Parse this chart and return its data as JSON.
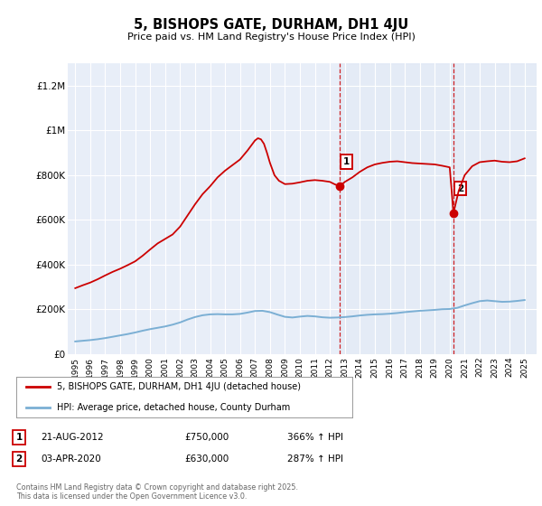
{
  "title": "5, BISHOPS GATE, DURHAM, DH1 4JU",
  "subtitle": "Price paid vs. HM Land Registry's House Price Index (HPI)",
  "ylim": [
    0,
    1300000
  ],
  "yticks": [
    0,
    200000,
    400000,
    600000,
    800000,
    1000000,
    1200000
  ],
  "ytick_labels": [
    "£0",
    "£200K",
    "£400K",
    "£600K",
    "£800K",
    "£1M",
    "£1.2M"
  ],
  "hpi_color": "#7bafd4",
  "price_color": "#cc0000",
  "fig_bg_color": "#ffffff",
  "plot_bg_color": "#e8eef8",
  "grid_color": "#ffffff",
  "marker1_x": 2012.65,
  "marker1_y": 750000,
  "marker1_label": "1",
  "marker1_date": "21-AUG-2012",
  "marker1_price": "£750,000",
  "marker1_hpi": "366% ↑ HPI",
  "marker2_x": 2020.25,
  "marker2_y": 630000,
  "marker2_label": "2",
  "marker2_date": "03-APR-2020",
  "marker2_price": "£630,000",
  "marker2_hpi": "287% ↑ HPI",
  "legend_line1": "5, BISHOPS GATE, DURHAM, DH1 4JU (detached house)",
  "legend_line2": "HPI: Average price, detached house, County Durham",
  "footer": "Contains HM Land Registry data © Crown copyright and database right 2025.\nThis data is licensed under the Open Government Licence v3.0.",
  "dashed_vline_color": "#cc0000",
  "xlim_left": 1994.5,
  "xlim_right": 2025.8,
  "hpi_data_x": [
    1995.0,
    1995.5,
    1996.0,
    1996.5,
    1997.0,
    1997.5,
    1998.0,
    1998.5,
    1999.0,
    1999.5,
    2000.0,
    2000.5,
    2001.0,
    2001.5,
    2002.0,
    2002.5,
    2003.0,
    2003.5,
    2004.0,
    2004.5,
    2005.0,
    2005.5,
    2006.0,
    2006.5,
    2007.0,
    2007.5,
    2008.0,
    2008.5,
    2009.0,
    2009.5,
    2010.0,
    2010.5,
    2011.0,
    2011.5,
    2012.0,
    2012.5,
    2013.0,
    2013.5,
    2014.0,
    2014.5,
    2015.0,
    2015.5,
    2016.0,
    2016.5,
    2017.0,
    2017.5,
    2018.0,
    2018.5,
    2019.0,
    2019.5,
    2020.0,
    2020.5,
    2021.0,
    2021.5,
    2022.0,
    2022.5,
    2023.0,
    2023.5,
    2024.0,
    2024.5,
    2025.0
  ],
  "hpi_data_y": [
    57000,
    60000,
    63000,
    67000,
    72000,
    78000,
    84000,
    90000,
    97000,
    105000,
    112000,
    118000,
    124000,
    132000,
    142000,
    155000,
    166000,
    174000,
    178000,
    179000,
    178000,
    178000,
    180000,
    186000,
    193000,
    194000,
    188000,
    177000,
    167000,
    164000,
    168000,
    171000,
    169000,
    165000,
    163000,
    164000,
    166000,
    169000,
    173000,
    176000,
    178000,
    179000,
    181000,
    184000,
    188000,
    191000,
    194000,
    196000,
    198000,
    201000,
    202000,
    207000,
    218000,
    228000,
    237000,
    240000,
    237000,
    234000,
    235000,
    238000,
    242000
  ],
  "price_data_x": [
    1995.0,
    1995.5,
    1996.0,
    1996.5,
    1997.0,
    1997.5,
    1998.0,
    1998.5,
    1999.0,
    1999.5,
    2000.0,
    2000.5,
    2001.0,
    2001.5,
    2002.0,
    2002.5,
    2003.0,
    2003.5,
    2004.0,
    2004.5,
    2005.0,
    2005.5,
    2006.0,
    2006.5,
    2007.0,
    2007.2,
    2007.4,
    2007.6,
    2007.8,
    2008.0,
    2008.3,
    2008.6,
    2009.0,
    2009.5,
    2010.0,
    2010.5,
    2011.0,
    2011.5,
    2012.0,
    2012.3,
    2012.65,
    2013.0,
    2013.5,
    2014.0,
    2014.5,
    2015.0,
    2015.5,
    2016.0,
    2016.5,
    2017.0,
    2017.5,
    2018.0,
    2018.5,
    2019.0,
    2019.5,
    2020.0,
    2020.25,
    2020.6,
    2021.0,
    2021.5,
    2022.0,
    2022.5,
    2023.0,
    2023.5,
    2024.0,
    2024.5,
    2025.0
  ],
  "price_data_y": [
    295000,
    308000,
    320000,
    335000,
    352000,
    368000,
    382000,
    398000,
    415000,
    440000,
    468000,
    495000,
    515000,
    535000,
    570000,
    620000,
    670000,
    715000,
    750000,
    790000,
    820000,
    845000,
    870000,
    910000,
    955000,
    965000,
    960000,
    940000,
    900000,
    855000,
    800000,
    775000,
    760000,
    762000,
    768000,
    775000,
    778000,
    775000,
    770000,
    760000,
    750000,
    770000,
    790000,
    815000,
    835000,
    848000,
    855000,
    860000,
    862000,
    858000,
    854000,
    852000,
    850000,
    848000,
    842000,
    835000,
    630000,
    730000,
    800000,
    840000,
    858000,
    862000,
    865000,
    860000,
    858000,
    862000,
    875000
  ]
}
